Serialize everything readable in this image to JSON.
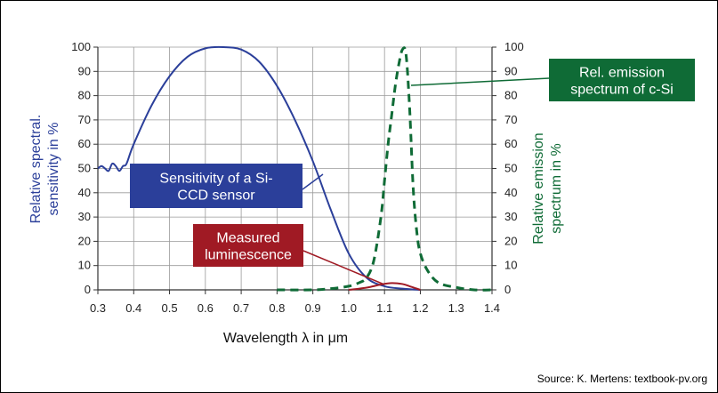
{
  "chart_data": {
    "type": "line",
    "xlabel": "Wavelength λ in μm",
    "ylabel_left": "Relative spectral. sensitivity in %",
    "ylabel_right": "Relative emission spectrum in %",
    "xlim": [
      0.3,
      1.4
    ],
    "ylim_left": [
      0,
      100
    ],
    "ylim_right": [
      0,
      100
    ],
    "x_ticks": [
      "0.3",
      "0.4",
      "0.5",
      "0.6",
      "0.7",
      "0.8",
      "0.9",
      "1.0",
      "1.1",
      "1.2",
      "1.3",
      "1.4"
    ],
    "y_ticks_left": [
      "0",
      "10",
      "20",
      "30",
      "40",
      "50",
      "60",
      "70",
      "80",
      "90",
      "100"
    ],
    "y_ticks_right": [
      "0",
      "10",
      "20",
      "30",
      "40",
      "50",
      "60",
      "70",
      "80",
      "90",
      "100"
    ],
    "grid": true,
    "series": [
      {
        "name": "Sensitivity of a Si-CCD sensor",
        "color": "#2b3f9a",
        "style": "solid",
        "axis": "left",
        "x": [
          0.3,
          0.31,
          0.32,
          0.33,
          0.34,
          0.35,
          0.36,
          0.37,
          0.38,
          0.4,
          0.45,
          0.5,
          0.55,
          0.6,
          0.65,
          0.7,
          0.75,
          0.8,
          0.85,
          0.9,
          0.95,
          1.0,
          1.05,
          1.1,
          1.15,
          1.2
        ],
        "y": [
          50,
          51,
          50,
          49,
          52,
          51,
          49,
          51,
          52,
          60,
          76,
          88,
          96,
          99.5,
          100,
          99,
          94,
          84,
          70,
          53,
          33,
          15,
          5,
          1.5,
          0.5,
          0
        ]
      },
      {
        "name": "Rel. emission spectrum of c-Si",
        "color": "#0f6b36",
        "style": "dashed",
        "axis": "right",
        "x": [
          0.8,
          0.9,
          0.95,
          1.0,
          1.03,
          1.05,
          1.07,
          1.09,
          1.1,
          1.11,
          1.12,
          1.13,
          1.14,
          1.15,
          1.16,
          1.17,
          1.18,
          1.19,
          1.2,
          1.22,
          1.25,
          1.3,
          1.35,
          1.4
        ],
        "y": [
          0,
          0,
          0.5,
          1.5,
          3,
          5,
          12,
          30,
          45,
          60,
          72,
          84,
          93,
          99,
          97,
          75,
          42,
          24,
          15,
          8,
          3,
          1,
          0,
          0
        ]
      },
      {
        "name": "Measured luminescence",
        "color": "#a01a24",
        "style": "solid",
        "axis": "left",
        "x": [
          1.0,
          1.03,
          1.06,
          1.09,
          1.12,
          1.15,
          1.17,
          1.19,
          1.2
        ],
        "y": [
          0,
          0.5,
          1.2,
          2.2,
          2.8,
          2.4,
          1.5,
          0.5,
          0
        ]
      }
    ],
    "annotations": [
      {
        "text_lines": [
          "Sensitivity of a Si-",
          "CCD sensor"
        ],
        "color": "#2b3f9a"
      },
      {
        "text_lines": [
          "Measured",
          "luminescence"
        ],
        "color": "#a01a24"
      },
      {
        "text_lines": [
          "Rel. emission",
          "spectrum of c-Si"
        ],
        "color": "#0f6b36"
      }
    ]
  },
  "source": "Source: K. Mertens: textbook-pv.org"
}
